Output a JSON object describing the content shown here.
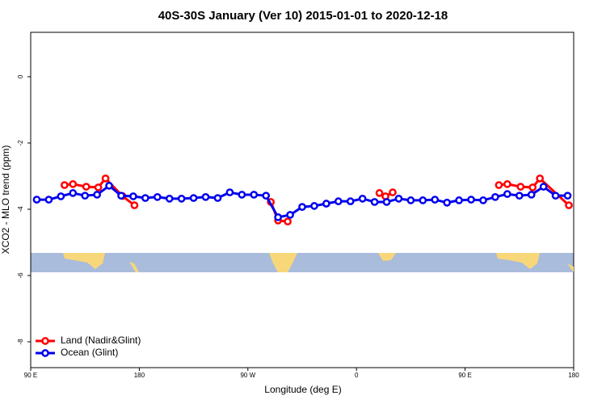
{
  "chart_data": {
    "type": "line",
    "title": "40S-30S January (Ver 10)   2015-01-01 to 2020-12-18",
    "x_label": "Longitude (deg E)",
    "y_label": "XCO2 - MLO trend (ppm)",
    "xlim": [
      90,
      540
    ],
    "xticks": [
      {
        "value": 90,
        "label": "90 E"
      },
      {
        "value": 180,
        "label": "180"
      },
      {
        "value": 270,
        "label": "90 W"
      },
      {
        "value": 360,
        "label": "0"
      },
      {
        "value": 450,
        "label": "90 E"
      },
      {
        "value": 540,
        "label": "180"
      }
    ],
    "ylim": [
      -8.78,
      1.34
    ],
    "yticks": [
      0,
      -2,
      -4,
      -6,
      -8
    ],
    "legend": "bottom-left",
    "series": [
      {
        "name": "Land (Nadir&Glint)",
        "color": "#ff0000",
        "x": [
          118,
          125,
          136,
          146,
          152,
          166,
          176,
          null,
          289,
          295,
          303,
          null,
          379,
          384,
          390,
          null,
          478,
          485,
          496,
          506,
          512,
          536
        ],
        "values": [
          -3.27,
          -3.24,
          -3.32,
          -3.34,
          -3.07,
          -3.6,
          -3.88,
          null,
          -3.78,
          -4.34,
          -4.37,
          null,
          -3.51,
          -3.61,
          -3.49,
          null,
          -3.27,
          -3.24,
          -3.32,
          -3.34,
          -3.07,
          -3.88
        ]
      },
      {
        "name": "Ocean (Glint)",
        "color": "#0000ee",
        "x": [
          95,
          105,
          115,
          125,
          135,
          145,
          155,
          165,
          175,
          185,
          195,
          205,
          215,
          225,
          235,
          245,
          255,
          265,
          275,
          285,
          295,
          305,
          315,
          325,
          335,
          345,
          355,
          365,
          375,
          385,
          395,
          405,
          415,
          425,
          435,
          445,
          455,
          465,
          475,
          485,
          495,
          505,
          515,
          525,
          535
        ],
        "values": [
          -3.71,
          -3.71,
          -3.61,
          -3.51,
          -3.59,
          -3.56,
          -3.29,
          -3.59,
          -3.61,
          -3.66,
          -3.63,
          -3.68,
          -3.68,
          -3.66,
          -3.63,
          -3.66,
          -3.49,
          -3.56,
          -3.56,
          -3.59,
          -4.24,
          -4.17,
          -3.93,
          -3.9,
          -3.83,
          -3.76,
          -3.76,
          -3.68,
          -3.78,
          -3.78,
          -3.68,
          -3.73,
          -3.73,
          -3.71,
          -3.8,
          -3.73,
          -3.71,
          -3.73,
          -3.63,
          -3.54,
          -3.59,
          -3.56,
          -3.32,
          -3.59,
          -3.59
        ]
      }
    ]
  }
}
